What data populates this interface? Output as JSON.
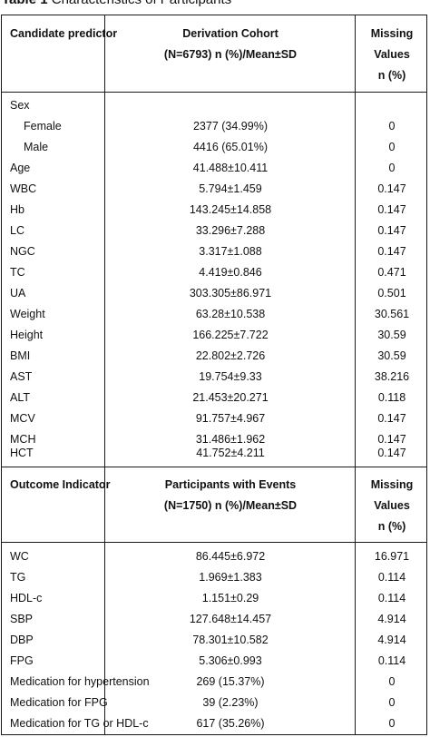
{
  "caption": {
    "label": "Table 1",
    "title": "Characteristics of Participants"
  },
  "section1": {
    "header": {
      "col1": "Candidate predictor",
      "col2_line1": "Derivation Cohort",
      "col2_line2": "(N=6793) n (%)/Mean±SD",
      "col3_line1": "Missing",
      "col3_line2": "Values",
      "col3_line3": "n (%)"
    },
    "group_label": "Sex",
    "rows": [
      {
        "name": "Female",
        "value": "2377 (34.99%)",
        "missing": "0"
      },
      {
        "name": "Male",
        "value": "4416 (65.01%)",
        "missing": "0"
      },
      {
        "name": "Age",
        "value": "41.488±10.411",
        "missing": "0"
      },
      {
        "name": "WBC",
        "value": "5.794±1.459",
        "missing": "0.147"
      },
      {
        "name": "Hb",
        "value": "143.245±14.858",
        "missing": "0.147"
      },
      {
        "name": "LC",
        "value": "33.296±7.288",
        "missing": "0.147"
      },
      {
        "name": "NGC",
        "value": "3.317±1.088",
        "missing": "0.147"
      },
      {
        "name": "TC",
        "value": "4.419±0.846",
        "missing": "0.471"
      },
      {
        "name": "UA",
        "value": "303.305±86.971",
        "missing": "0.501"
      },
      {
        "name": "Weight",
        "value": "63.28±10.538",
        "missing": "30.561"
      },
      {
        "name": "Height",
        "value": "166.225±7.722",
        "missing": "30.59"
      },
      {
        "name": "BMI",
        "value": "22.802±2.726",
        "missing": "30.59"
      },
      {
        "name": "AST",
        "value": "19.754±9.33",
        "missing": "38.216"
      },
      {
        "name": "ALT",
        "value": "21.453±20.271",
        "missing": "0.118"
      },
      {
        "name": "MCV",
        "value": "91.757±4.967",
        "missing": "0.147"
      },
      {
        "name": "MCH",
        "value": "31.486±1.962",
        "missing": "0.147"
      },
      {
        "name": "HCT",
        "value": "41.752±4.211",
        "missing": "0.147"
      }
    ]
  },
  "section2": {
    "header": {
      "col1": "Outcome Indicator",
      "col2_line1": "Participants with Events",
      "col2_line2": "(N=1750) n (%)/Mean±SD",
      "col3_line1": "Missing",
      "col3_line2": "Values",
      "col3_line3": "n (%)"
    },
    "rows": [
      {
        "name": "WC",
        "value": "86.445±6.972",
        "missing": "16.971"
      },
      {
        "name": "TG",
        "value": "1.969±1.383",
        "missing": "0.114"
      },
      {
        "name": "HDL-c",
        "value": "1.151±0.29",
        "missing": "0.114"
      },
      {
        "name": "SBP",
        "value": "127.648±14.457",
        "missing": "4.914"
      },
      {
        "name": "DBP",
        "value": "78.301±10.582",
        "missing": "4.914"
      },
      {
        "name": "FPG",
        "value": "5.306±0.993",
        "missing": "0.114"
      },
      {
        "name": "Medication for hypertension",
        "value": "269 (15.37%)",
        "missing": "0"
      },
      {
        "name": "Medication for FPG",
        "value": "39 (2.23%)",
        "missing": "0"
      },
      {
        "name": "Medication for TG or HDL-c",
        "value": "617 (35.26%)",
        "missing": "0"
      }
    ]
  }
}
